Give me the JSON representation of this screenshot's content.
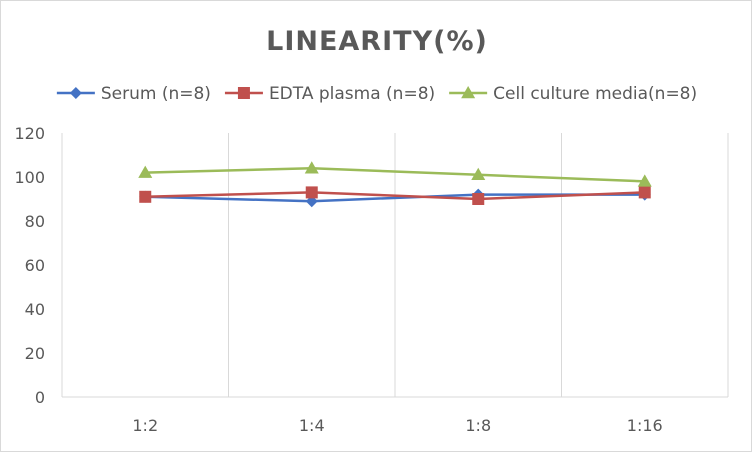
{
  "chart_data": {
    "type": "line",
    "title": "LINEARITY(%)",
    "xlabel": "",
    "ylabel": "",
    "categories": [
      "1:2",
      "1:4",
      "1:8",
      "1:16"
    ],
    "ylim": [
      0,
      120
    ],
    "yticks": [
      0,
      20,
      40,
      60,
      80,
      100,
      120
    ],
    "grid": "vertical",
    "legend_position": "top",
    "series": [
      {
        "name": "Serum (n=8)",
        "values": [
          91,
          89,
          92,
          92
        ],
        "color": "#4472C4",
        "marker": "diamond"
      },
      {
        "name": "EDTA plasma (n=8)",
        "values": [
          91,
          93,
          90,
          93
        ],
        "color": "#C0504D",
        "marker": "square"
      },
      {
        "name": "Cell culture media(n=8)",
        "values": [
          102,
          104,
          101,
          98
        ],
        "color": "#9BBB59",
        "marker": "triangle"
      }
    ]
  }
}
